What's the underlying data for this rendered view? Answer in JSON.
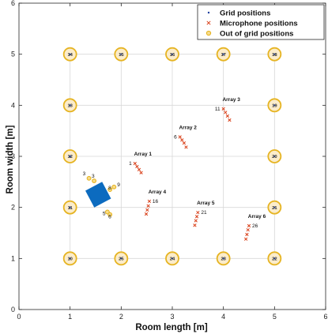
{
  "chart_data": {
    "type": "scatter",
    "xlabel": "Room length [m]",
    "ylabel": "Room width [m]",
    "xlim": [
      0,
      6
    ],
    "ylim": [
      0,
      6
    ],
    "xticks": [
      "0",
      "1",
      "2",
      "3",
      "4",
      "5",
      "6"
    ],
    "yticks": [
      "0",
      "1",
      "2",
      "3",
      "4",
      "5",
      "6"
    ],
    "grid": "none",
    "legend_position": "top-right",
    "legend": [
      {
        "label": "Grid positions",
        "marker": "dot",
        "color": "#1f3f9f"
      },
      {
        "label": "Microphone positions",
        "marker": "x",
        "color": "#d9401a"
      },
      {
        "label": "Out of grid positions",
        "marker": "circle",
        "color": "#e6b422"
      }
    ],
    "grid_positions": [
      {
        "label": "10",
        "x": 1,
        "y": 1
      },
      {
        "label": "11",
        "x": 1,
        "y": 2
      },
      {
        "label": "12",
        "x": 1,
        "y": 3
      },
      {
        "label": "13",
        "x": 1,
        "y": 4
      },
      {
        "label": "14",
        "x": 1,
        "y": 5
      },
      {
        "label": "15",
        "x": 2,
        "y": 5
      },
      {
        "label": "16",
        "x": 3,
        "y": 5
      },
      {
        "label": "17",
        "x": 4,
        "y": 5
      },
      {
        "label": "18",
        "x": 5,
        "y": 5
      },
      {
        "label": "19",
        "x": 5,
        "y": 4
      },
      {
        "label": "20",
        "x": 5,
        "y": 3
      },
      {
        "label": "21",
        "x": 5,
        "y": 2
      },
      {
        "label": "22",
        "x": 5,
        "y": 1
      },
      {
        "label": "23",
        "x": 4,
        "y": 1
      },
      {
        "label": "24",
        "x": 3,
        "y": 1
      },
      {
        "label": "25",
        "x": 2,
        "y": 1
      }
    ],
    "out_of_grid_positions": [
      {
        "label": "3",
        "x": 1.37,
        "y": 2.57
      },
      {
        "label": "3",
        "x": 1.47,
        "y": 2.52
      },
      {
        "label": "8",
        "x": 1.78,
        "y": 2.35
      },
      {
        "label": "9",
        "x": 1.86,
        "y": 2.4
      },
      {
        "label": "5",
        "x": 1.73,
        "y": 1.91
      },
      {
        "label": "6",
        "x": 1.78,
        "y": 1.86
      }
    ],
    "arrays": [
      {
        "name": "Array 1",
        "first_mic_label": "1",
        "mics": [
          [
            2.27,
            2.86
          ],
          [
            2.31,
            2.8
          ],
          [
            2.35,
            2.74
          ],
          [
            2.39,
            2.68
          ]
        ]
      },
      {
        "name": "Array 2",
        "first_mic_label": "6",
        "mics": [
          [
            3.15,
            3.38
          ],
          [
            3.19,
            3.32
          ],
          [
            3.23,
            3.26
          ],
          [
            3.27,
            3.18
          ]
        ]
      },
      {
        "name": "Array 3",
        "first_mic_label": "11",
        "mics": [
          [
            4.0,
            3.93
          ],
          [
            4.04,
            3.86
          ],
          [
            4.08,
            3.79
          ],
          [
            4.12,
            3.71
          ]
        ]
      },
      {
        "name": "Array 4",
        "first_mic_label": "16",
        "mics": [
          [
            2.55,
            2.12
          ],
          [
            2.53,
            2.03
          ],
          [
            2.51,
            1.95
          ],
          [
            2.49,
            1.87
          ]
        ]
      },
      {
        "name": "Array 5",
        "first_mic_label": "21",
        "mics": [
          [
            3.5,
            1.9
          ],
          [
            3.48,
            1.82
          ],
          [
            3.46,
            1.74
          ],
          [
            3.44,
            1.65
          ]
        ]
      },
      {
        "name": "Array 6",
        "first_mic_label": "26",
        "mics": [
          [
            4.5,
            1.64
          ],
          [
            4.48,
            1.56
          ],
          [
            4.46,
            1.47
          ],
          [
            4.44,
            1.38
          ]
        ]
      }
    ],
    "obstacle": {
      "color": "#0c6bbf"
    }
  }
}
